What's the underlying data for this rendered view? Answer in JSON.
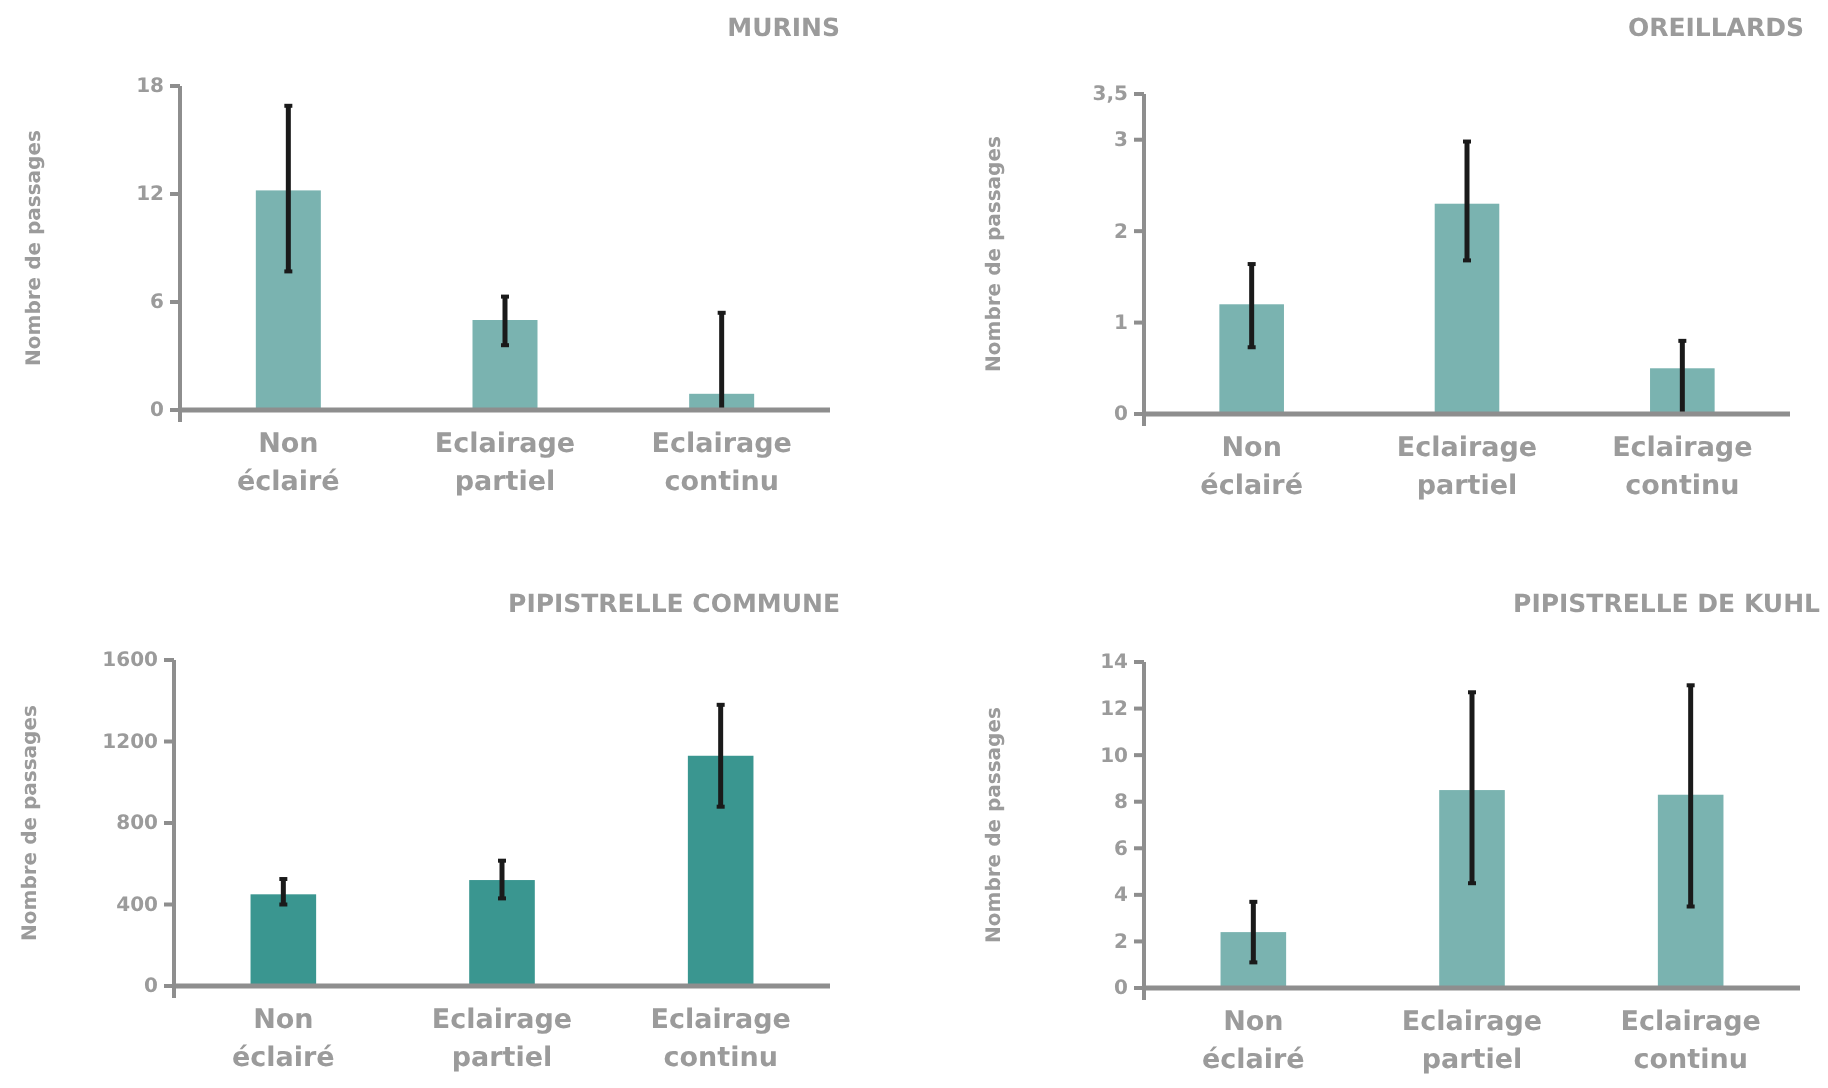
{
  "chart_data": [
    {
      "type": "bar",
      "title": "MURINS",
      "ylabel": "Nombre de passages",
      "categories": [
        "Non éclairé",
        "Eclairage partiel",
        "Eclairage continu"
      ],
      "values": [
        12.2,
        5.0,
        0.9
      ],
      "errors": [
        [
          7.7,
          16.9
        ],
        [
          3.6,
          6.3
        ],
        [
          0,
          5.4
        ]
      ],
      "color": "#7ab3b0",
      "ylim": [
        0,
        18
      ],
      "yticks": [
        0,
        6,
        12,
        18
      ]
    },
    {
      "type": "bar",
      "title": "OREILLARDS",
      "ylabel": "Nombre de passages",
      "categories": [
        "Non éclairé",
        "Eclairage partiel",
        "Eclairage continu"
      ],
      "values": [
        1.2,
        2.3,
        0.5
      ],
      "errors": [
        [
          0.73,
          1.64
        ],
        [
          1.68,
          2.98
        ],
        [
          0,
          0.8
        ]
      ],
      "color": "#7ab3b0",
      "ylim": [
        0,
        3.5
      ],
      "yticks": [
        0,
        1,
        2,
        3,
        {
          "value": 3.5,
          "label": "3,5"
        }
      ]
    },
    {
      "type": "bar",
      "title": "PIPISTRELLE COMMUNE",
      "ylabel": "Nombre de passages",
      "categories": [
        "Non éclairé",
        "Eclairage partiel",
        "Eclairage continu"
      ],
      "values": [
        450,
        520,
        1130
      ],
      "errors": [
        [
          400,
          525
        ],
        [
          430,
          615
        ],
        [
          880,
          1380
        ]
      ],
      "color": "#3a9690",
      "ylim": [
        0,
        1600
      ],
      "yticks": [
        0,
        400,
        800,
        1200,
        1600
      ]
    },
    {
      "type": "bar",
      "title": "PIPISTRELLE DE KUHL",
      "ylabel": "Nombre de passages",
      "categories": [
        "Non éclairé",
        "Eclairage partiel",
        "Eclairage continu"
      ],
      "values": [
        2.4,
        8.5,
        8.3
      ],
      "errors": [
        [
          1.1,
          3.7
        ],
        [
          4.5,
          12.7
        ],
        [
          3.5,
          13.0
        ]
      ],
      "color": "#7ab3b0",
      "ylim": [
        0,
        14
      ],
      "yticks": [
        0,
        2,
        4,
        6,
        8,
        10,
        12,
        14
      ]
    }
  ]
}
